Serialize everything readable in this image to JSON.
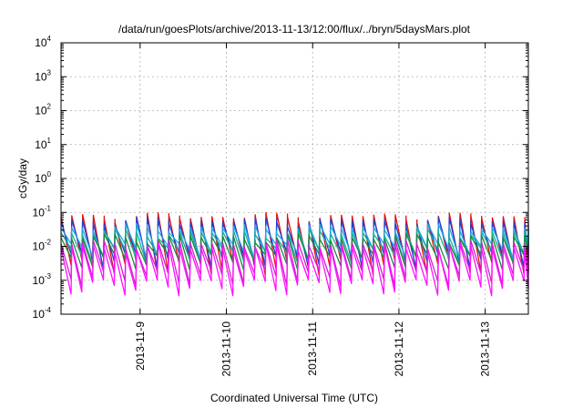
{
  "chart_data": {
    "type": "line",
    "title": "/data/run/goesPlots/archive/2013-11-13/12:00/flux/../bryn/5daysMars.plot",
    "xlabel": "Coordinated Universal Time (UTC)",
    "ylabel": "cGy/day",
    "yscale": "log",
    "ylim": [
      0.0001,
      10000
    ],
    "xlim": [
      "2013-11-08T02:00",
      "2013-11-13T12:00"
    ],
    "grid": true,
    "legend": "none",
    "y_ticks": [
      {
        "base": "10",
        "exp": "-4",
        "value": 0.0001
      },
      {
        "base": "10",
        "exp": "-3",
        "value": 0.001
      },
      {
        "base": "10",
        "exp": "-2",
        "value": 0.01
      },
      {
        "base": "10",
        "exp": "-1",
        "value": 0.1
      },
      {
        "base": "10",
        "exp": "0",
        "value": 1
      },
      {
        "base": "10",
        "exp": "1",
        "value": 10
      },
      {
        "base": "10",
        "exp": "2",
        "value": 100
      },
      {
        "base": "10",
        "exp": "3",
        "value": 1000
      },
      {
        "base": "10",
        "exp": "4",
        "value": 10000
      }
    ],
    "x_ticks": [
      {
        "label": "2013-11-9",
        "date": "2013-11-09T00:00"
      },
      {
        "label": "2013-11-10",
        "date": "2013-11-10T00:00"
      },
      {
        "label": "2013-11-11",
        "date": "2013-11-11T00:00"
      },
      {
        "label": "2013-11-12",
        "date": "2013-11-12T00:00"
      },
      {
        "label": "2013-11-13",
        "date": "2013-11-13T00:00"
      }
    ],
    "period_hours": 3,
    "series": [
      {
        "color": "#e01010",
        "peak": 0.075,
        "trough": 0.0028
      },
      {
        "color": "#1f3fd8",
        "peak": 0.055,
        "trough": 0.0045
      },
      {
        "color": "#20a8e8",
        "peak": 0.035,
        "trough": 0.008
      },
      {
        "color": "#15b0a0",
        "peak": 0.025,
        "trough": 0.006
      },
      {
        "color": "#1a8a3a",
        "peak": 0.018,
        "trough": 0.004
      },
      {
        "color": "#d020d0",
        "peak": 0.012,
        "trough": 0.0013
      },
      {
        "color": "#ff10ff",
        "peak": 0.009,
        "trough": 0.0007
      }
    ]
  }
}
